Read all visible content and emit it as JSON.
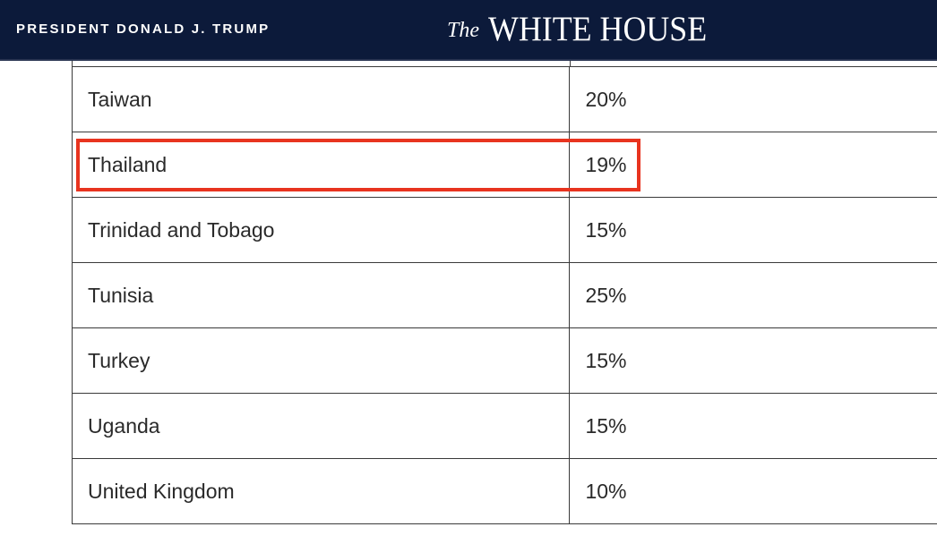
{
  "header": {
    "president_label": "PRESIDENT DONALD J. TRUMP",
    "logo_the": "The",
    "logo_main": "WHITE HOUSE",
    "background_color": "#0c1a3a"
  },
  "table": {
    "rows": [
      {
        "country": "Taiwan",
        "rate": "20%"
      },
      {
        "country": "Thailand",
        "rate": "19%"
      },
      {
        "country": "Trinidad and Tobago",
        "rate": "15%"
      },
      {
        "country": "Tunisia",
        "rate": "25%"
      },
      {
        "country": "Turkey",
        "rate": "15%"
      },
      {
        "country": "Uganda",
        "rate": "15%"
      },
      {
        "country": "United Kingdom",
        "rate": "10%"
      }
    ]
  },
  "annotation": {
    "highlighted_row": "Thailand",
    "color": "#e8341f"
  }
}
